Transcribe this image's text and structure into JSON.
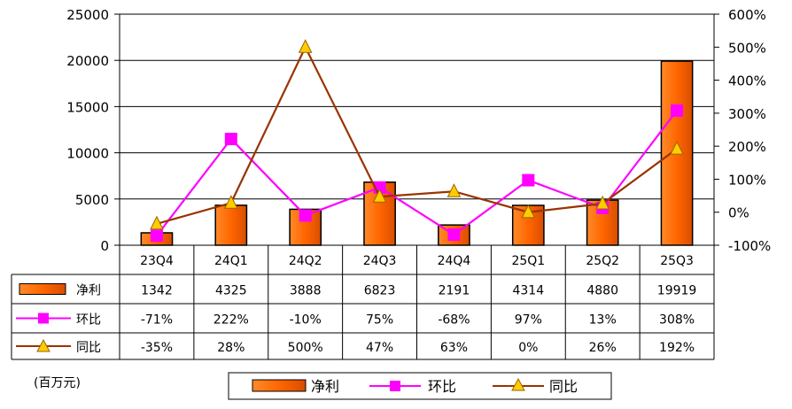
{
  "chart_data": {
    "type": "bar",
    "categories": [
      "23Q4",
      "24Q1",
      "24Q2",
      "24Q3",
      "24Q4",
      "25Q1",
      "25Q2",
      "25Q3"
    ],
    "series": [
      {
        "name": "净利",
        "type": "bar",
        "axis": "left",
        "values": [
          1342,
          4325,
          3888,
          6823,
          2191,
          4314,
          4880,
          19919
        ],
        "labels": [
          "1342",
          "4325",
          "3888",
          "6823",
          "2191",
          "4314",
          "4880",
          "19919"
        ]
      },
      {
        "name": "环比",
        "type": "line",
        "axis": "right",
        "values": [
          -71,
          222,
          -10,
          75,
          -68,
          97,
          13,
          308
        ],
        "labels": [
          "-71%",
          "222%",
          "-10%",
          "75%",
          "-68%",
          "97%",
          "13%",
          "308%"
        ]
      },
      {
        "name": "同比",
        "type": "line",
        "axis": "right",
        "values": [
          -35,
          28,
          500,
          47,
          63,
          0,
          26,
          192
        ],
        "labels": [
          "-35%",
          "28%",
          "500%",
          "47%",
          "63%",
          "0%",
          "26%",
          "192%"
        ]
      }
    ],
    "ylim_left": [
      0,
      25000
    ],
    "ylim_right": [
      -100,
      600
    ],
    "left_ticks": [
      "0",
      "5000",
      "10000",
      "15000",
      "20000",
      "25000"
    ],
    "right_ticks": [
      "-100%",
      "0%",
      "100%",
      "200%",
      "300%",
      "400%",
      "500%",
      "600%"
    ],
    "unit_label": "(百万元)",
    "grid": true,
    "legend_position": "bottom",
    "colors": {
      "bar": "#ff6600",
      "qoq": "#ff00ff",
      "yoy": "#993300",
      "yoy_marker": "#ffcc00"
    }
  }
}
